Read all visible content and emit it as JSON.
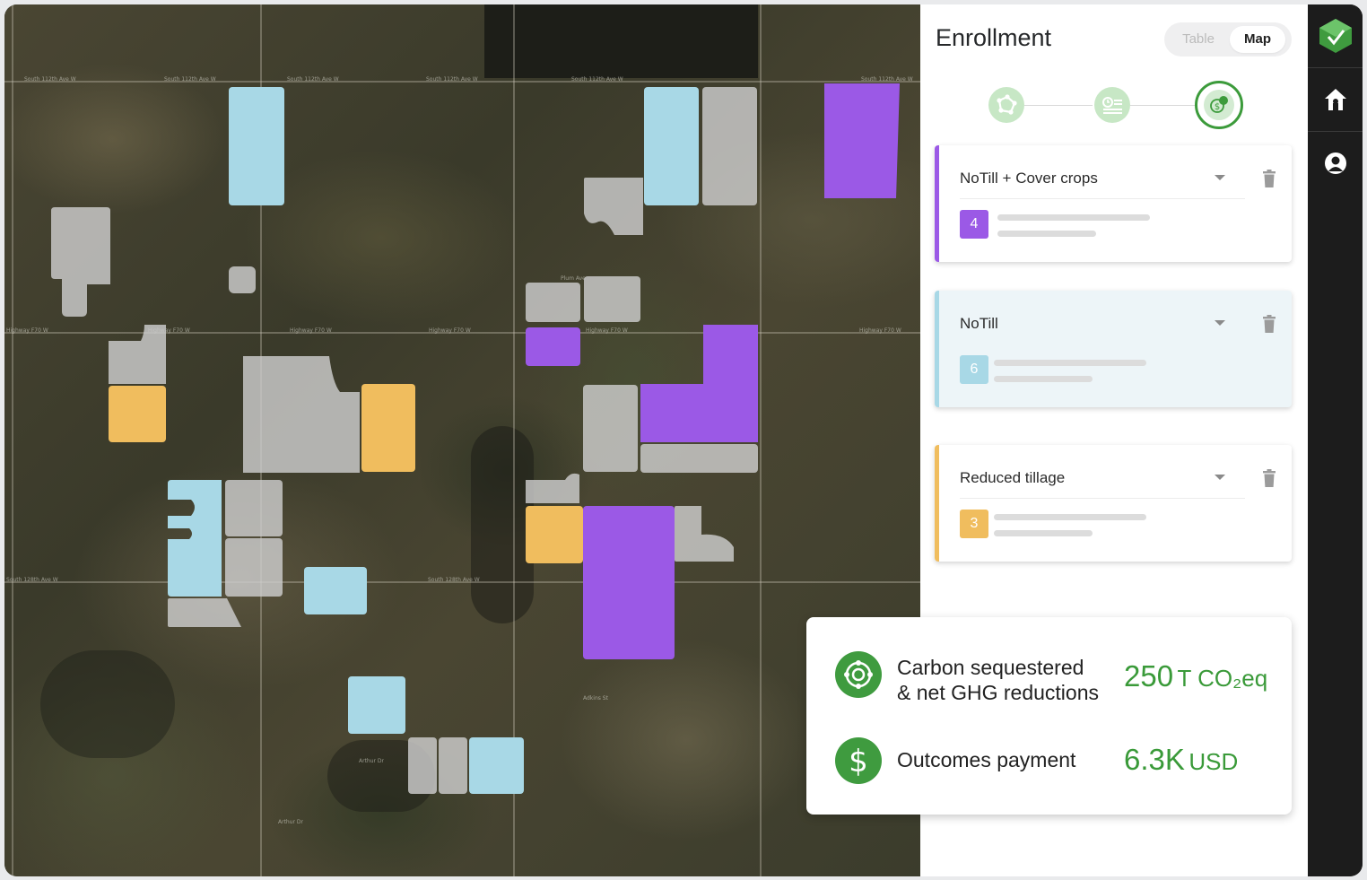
{
  "map": {
    "road_labels": [
      "South 112th Ave W",
      "South 112th Ave W",
      "South 112th Ave W",
      "South 112th Ave W",
      "South 112th Ave W",
      "South 112th Ave W",
      "South 112th Ave W",
      "South 112th Ave W",
      "Highway F70 W",
      "Highway F70 W",
      "Highway F70 W",
      "Highway F70 W",
      "Highway F70 W",
      "Highway F70 W",
      "Highway F70 W",
      "South 128th Ave W",
      "South 128th Ave W",
      "Adkins St",
      "Arthur Dr",
      "Arthur Dr",
      "Plum Ave"
    ],
    "legend_colors": {
      "notill_cover": "#9b59e6",
      "notill": "#a8d8e6",
      "reduced": "#f0bd5e",
      "unenrolled": "#cdcdcd"
    }
  },
  "panel": {
    "title": "Enrollment",
    "view_toggle": {
      "table_label": "Table",
      "map_label": "Map",
      "selected": "Map"
    },
    "steps": [
      {
        "icon": "field-boundary-icon",
        "state": "done"
      },
      {
        "icon": "practice-list-icon",
        "state": "done"
      },
      {
        "icon": "payment-coins-icon",
        "state": "active"
      }
    ],
    "practices": [
      {
        "name": "NoTill + Cover crops",
        "count": "4",
        "color": "#9b59e6"
      },
      {
        "name": "NoTill",
        "count": "6",
        "color": "#a8d8e6"
      },
      {
        "name": "Reduced tillage",
        "count": "3",
        "color": "#f0bd5e"
      }
    ]
  },
  "summary": {
    "carbon_label_line1": "Carbon sequestered",
    "carbon_label_line2": "& net GHG reductions",
    "carbon_value": "250",
    "carbon_unit": "T CO₂eq",
    "payment_label": "Outcomes payment",
    "payment_value": "6.3K",
    "payment_unit": "USD",
    "accent_color": "#3a9a39"
  },
  "nav": {
    "items": [
      "logo-icon",
      "home-icon",
      "profile-icon"
    ]
  }
}
